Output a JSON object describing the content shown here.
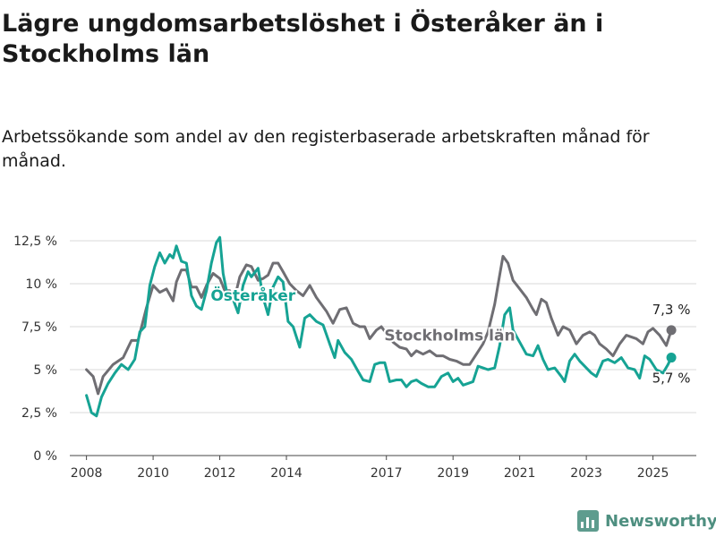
{
  "title": "Lägre ungdomsarbetslöshet i Österåker än i Stockholms län",
  "subtitle": "Arbetssökande som andel av den registerbaserade arbetskraften månad för månad.",
  "brand": "Newsworthy",
  "colors": {
    "osteraker": "#16a394",
    "stockholm": "#6f6e73",
    "grid": "#d9d9d9",
    "brand": "#4e8f80"
  },
  "chart_data": {
    "type": "line",
    "x_unit": "year",
    "xlim": [
      2007.5,
      2026.3
    ],
    "ylim": [
      0,
      12.5
    ],
    "yticks": [
      0,
      2.5,
      5,
      7.5,
      10,
      12.5
    ],
    "ytick_labels": [
      "0 %",
      "2,5 %",
      "5 %",
      "7,5 %",
      "10 %",
      "12,5 %"
    ],
    "xticks": [
      2008,
      2010,
      2012,
      2014,
      2017,
      2019,
      2021,
      2023,
      2025
    ],
    "xtick_labels": [
      "2008",
      "2010",
      "2012",
      "2014",
      "2017",
      "2019",
      "2021",
      "2023",
      "2025"
    ],
    "grid": true,
    "series": [
      {
        "name": "Stockholms län",
        "end_label": "7,3 %",
        "points": [
          [
            2008.0,
            5.0
          ],
          [
            2008.2,
            4.6
          ],
          [
            2008.35,
            3.6
          ],
          [
            2008.5,
            4.6
          ],
          [
            2008.8,
            5.3
          ],
          [
            2009.1,
            5.7
          ],
          [
            2009.35,
            6.7
          ],
          [
            2009.55,
            6.7
          ],
          [
            2009.8,
            8.6
          ],
          [
            2010.0,
            9.9
          ],
          [
            2010.2,
            9.5
          ],
          [
            2010.4,
            9.7
          ],
          [
            2010.6,
            9.0
          ],
          [
            2010.7,
            10.1
          ],
          [
            2010.85,
            10.8
          ],
          [
            2011.0,
            10.8
          ],
          [
            2011.15,
            9.8
          ],
          [
            2011.3,
            9.8
          ],
          [
            2011.45,
            9.2
          ],
          [
            2011.6,
            9.9
          ],
          [
            2011.8,
            10.6
          ],
          [
            2012.0,
            10.3
          ],
          [
            2012.15,
            9.6
          ],
          [
            2012.3,
            9.6
          ],
          [
            2012.45,
            9.2
          ],
          [
            2012.6,
            10.4
          ],
          [
            2012.8,
            11.1
          ],
          [
            2012.95,
            11.0
          ],
          [
            2013.15,
            10.2
          ],
          [
            2013.3,
            10.3
          ],
          [
            2013.45,
            10.5
          ],
          [
            2013.6,
            11.2
          ],
          [
            2013.75,
            11.2
          ],
          [
            2013.9,
            10.7
          ],
          [
            2014.1,
            10.0
          ],
          [
            2014.3,
            9.6
          ],
          [
            2014.5,
            9.3
          ],
          [
            2014.7,
            9.9
          ],
          [
            2014.9,
            9.2
          ],
          [
            2015.2,
            8.4
          ],
          [
            2015.4,
            7.7
          ],
          [
            2015.6,
            8.5
          ],
          [
            2015.8,
            8.6
          ],
          [
            2016.0,
            7.7
          ],
          [
            2016.2,
            7.5
          ],
          [
            2016.35,
            7.5
          ],
          [
            2016.5,
            6.8
          ],
          [
            2016.7,
            7.3
          ],
          [
            2016.85,
            7.5
          ],
          [
            2017.0,
            7.1
          ],
          [
            2017.2,
            6.6
          ],
          [
            2017.4,
            6.3
          ],
          [
            2017.6,
            6.2
          ],
          [
            2017.75,
            5.8
          ],
          [
            2017.9,
            6.1
          ],
          [
            2018.1,
            5.9
          ],
          [
            2018.3,
            6.1
          ],
          [
            2018.5,
            5.8
          ],
          [
            2018.7,
            5.8
          ],
          [
            2018.9,
            5.6
          ],
          [
            2019.1,
            5.5
          ],
          [
            2019.3,
            5.3
          ],
          [
            2019.5,
            5.3
          ],
          [
            2019.7,
            5.9
          ],
          [
            2019.9,
            6.5
          ],
          [
            2020.05,
            7.2
          ],
          [
            2020.25,
            8.8
          ],
          [
            2020.4,
            10.5
          ],
          [
            2020.5,
            11.6
          ],
          [
            2020.65,
            11.2
          ],
          [
            2020.8,
            10.2
          ],
          [
            2021.0,
            9.7
          ],
          [
            2021.2,
            9.2
          ],
          [
            2021.4,
            8.5
          ],
          [
            2021.5,
            8.2
          ],
          [
            2021.65,
            9.1
          ],
          [
            2021.8,
            8.9
          ],
          [
            2021.95,
            8.0
          ],
          [
            2022.15,
            7.0
          ],
          [
            2022.3,
            7.5
          ],
          [
            2022.5,
            7.3
          ],
          [
            2022.7,
            6.5
          ],
          [
            2022.9,
            7.0
          ],
          [
            2023.1,
            7.2
          ],
          [
            2023.25,
            7.0
          ],
          [
            2023.4,
            6.5
          ],
          [
            2023.6,
            6.2
          ],
          [
            2023.8,
            5.8
          ],
          [
            2024.0,
            6.5
          ],
          [
            2024.2,
            7.0
          ],
          [
            2024.5,
            6.8
          ],
          [
            2024.7,
            6.5
          ],
          [
            2024.85,
            7.2
          ],
          [
            2025.0,
            7.4
          ],
          [
            2025.2,
            7.0
          ],
          [
            2025.4,
            6.4
          ],
          [
            2025.55,
            7.3
          ]
        ]
      },
      {
        "name": "Österåker",
        "end_label": "5,7 %",
        "points": [
          [
            2008.0,
            3.5
          ],
          [
            2008.15,
            2.5
          ],
          [
            2008.3,
            2.3
          ],
          [
            2008.45,
            3.4
          ],
          [
            2008.65,
            4.2
          ],
          [
            2008.85,
            4.8
          ],
          [
            2009.05,
            5.3
          ],
          [
            2009.25,
            5.0
          ],
          [
            2009.45,
            5.6
          ],
          [
            2009.6,
            7.2
          ],
          [
            2009.75,
            7.5
          ],
          [
            2009.9,
            9.9
          ],
          [
            2010.05,
            11.0
          ],
          [
            2010.2,
            11.8
          ],
          [
            2010.35,
            11.2
          ],
          [
            2010.5,
            11.7
          ],
          [
            2010.6,
            11.5
          ],
          [
            2010.7,
            12.2
          ],
          [
            2010.85,
            11.3
          ],
          [
            2011.0,
            11.2
          ],
          [
            2011.15,
            9.3
          ],
          [
            2011.3,
            8.7
          ],
          [
            2011.45,
            8.5
          ],
          [
            2011.6,
            9.6
          ],
          [
            2011.75,
            11.2
          ],
          [
            2011.9,
            12.4
          ],
          [
            2012.0,
            12.7
          ],
          [
            2012.1,
            10.6
          ],
          [
            2012.25,
            9.1
          ],
          [
            2012.4,
            9.1
          ],
          [
            2012.55,
            8.3
          ],
          [
            2012.7,
            9.9
          ],
          [
            2012.85,
            10.7
          ],
          [
            2012.95,
            10.4
          ],
          [
            2013.15,
            10.9
          ],
          [
            2013.3,
            9.2
          ],
          [
            2013.45,
            8.2
          ],
          [
            2013.6,
            9.8
          ],
          [
            2013.75,
            10.4
          ],
          [
            2013.9,
            10.1
          ],
          [
            2014.05,
            7.8
          ],
          [
            2014.2,
            7.5
          ],
          [
            2014.4,
            6.3
          ],
          [
            2014.55,
            8.0
          ],
          [
            2014.7,
            8.2
          ],
          [
            2014.9,
            7.8
          ],
          [
            2015.1,
            7.6
          ],
          [
            2015.3,
            6.5
          ],
          [
            2015.45,
            5.7
          ],
          [
            2015.55,
            6.7
          ],
          [
            2015.75,
            6.0
          ],
          [
            2015.95,
            5.6
          ],
          [
            2016.15,
            4.9
          ],
          [
            2016.3,
            4.4
          ],
          [
            2016.5,
            4.3
          ],
          [
            2016.65,
            5.3
          ],
          [
            2016.8,
            5.4
          ],
          [
            2016.95,
            5.4
          ],
          [
            2017.1,
            4.3
          ],
          [
            2017.3,
            4.4
          ],
          [
            2017.45,
            4.4
          ],
          [
            2017.6,
            4.0
          ],
          [
            2017.75,
            4.3
          ],
          [
            2017.9,
            4.4
          ],
          [
            2018.05,
            4.2
          ],
          [
            2018.25,
            4.0
          ],
          [
            2018.45,
            4.0
          ],
          [
            2018.65,
            4.6
          ],
          [
            2018.85,
            4.8
          ],
          [
            2019.0,
            4.3
          ],
          [
            2019.15,
            4.5
          ],
          [
            2019.3,
            4.1
          ],
          [
            2019.45,
            4.2
          ],
          [
            2019.6,
            4.3
          ],
          [
            2019.75,
            5.2
          ],
          [
            2019.9,
            5.1
          ],
          [
            2020.05,
            5.0
          ],
          [
            2020.25,
            5.1
          ],
          [
            2020.4,
            6.4
          ],
          [
            2020.55,
            8.2
          ],
          [
            2020.7,
            8.6
          ],
          [
            2020.8,
            7.3
          ],
          [
            2021.0,
            6.6
          ],
          [
            2021.2,
            5.9
          ],
          [
            2021.4,
            5.8
          ],
          [
            2021.55,
            6.4
          ],
          [
            2021.7,
            5.6
          ],
          [
            2021.85,
            5.0
          ],
          [
            2022.05,
            5.1
          ],
          [
            2022.25,
            4.6
          ],
          [
            2022.35,
            4.3
          ],
          [
            2022.5,
            5.5
          ],
          [
            2022.65,
            5.9
          ],
          [
            2022.8,
            5.5
          ],
          [
            2022.95,
            5.2
          ],
          [
            2023.15,
            4.8
          ],
          [
            2023.3,
            4.6
          ],
          [
            2023.5,
            5.5
          ],
          [
            2023.65,
            5.6
          ],
          [
            2023.85,
            5.4
          ],
          [
            2024.05,
            5.7
          ],
          [
            2024.25,
            5.1
          ],
          [
            2024.45,
            5.0
          ],
          [
            2024.6,
            4.5
          ],
          [
            2024.75,
            5.8
          ],
          [
            2024.9,
            5.6
          ],
          [
            2025.1,
            5.0
          ],
          [
            2025.3,
            4.8
          ],
          [
            2025.45,
            5.3
          ],
          [
            2025.55,
            5.7
          ]
        ]
      }
    ]
  }
}
